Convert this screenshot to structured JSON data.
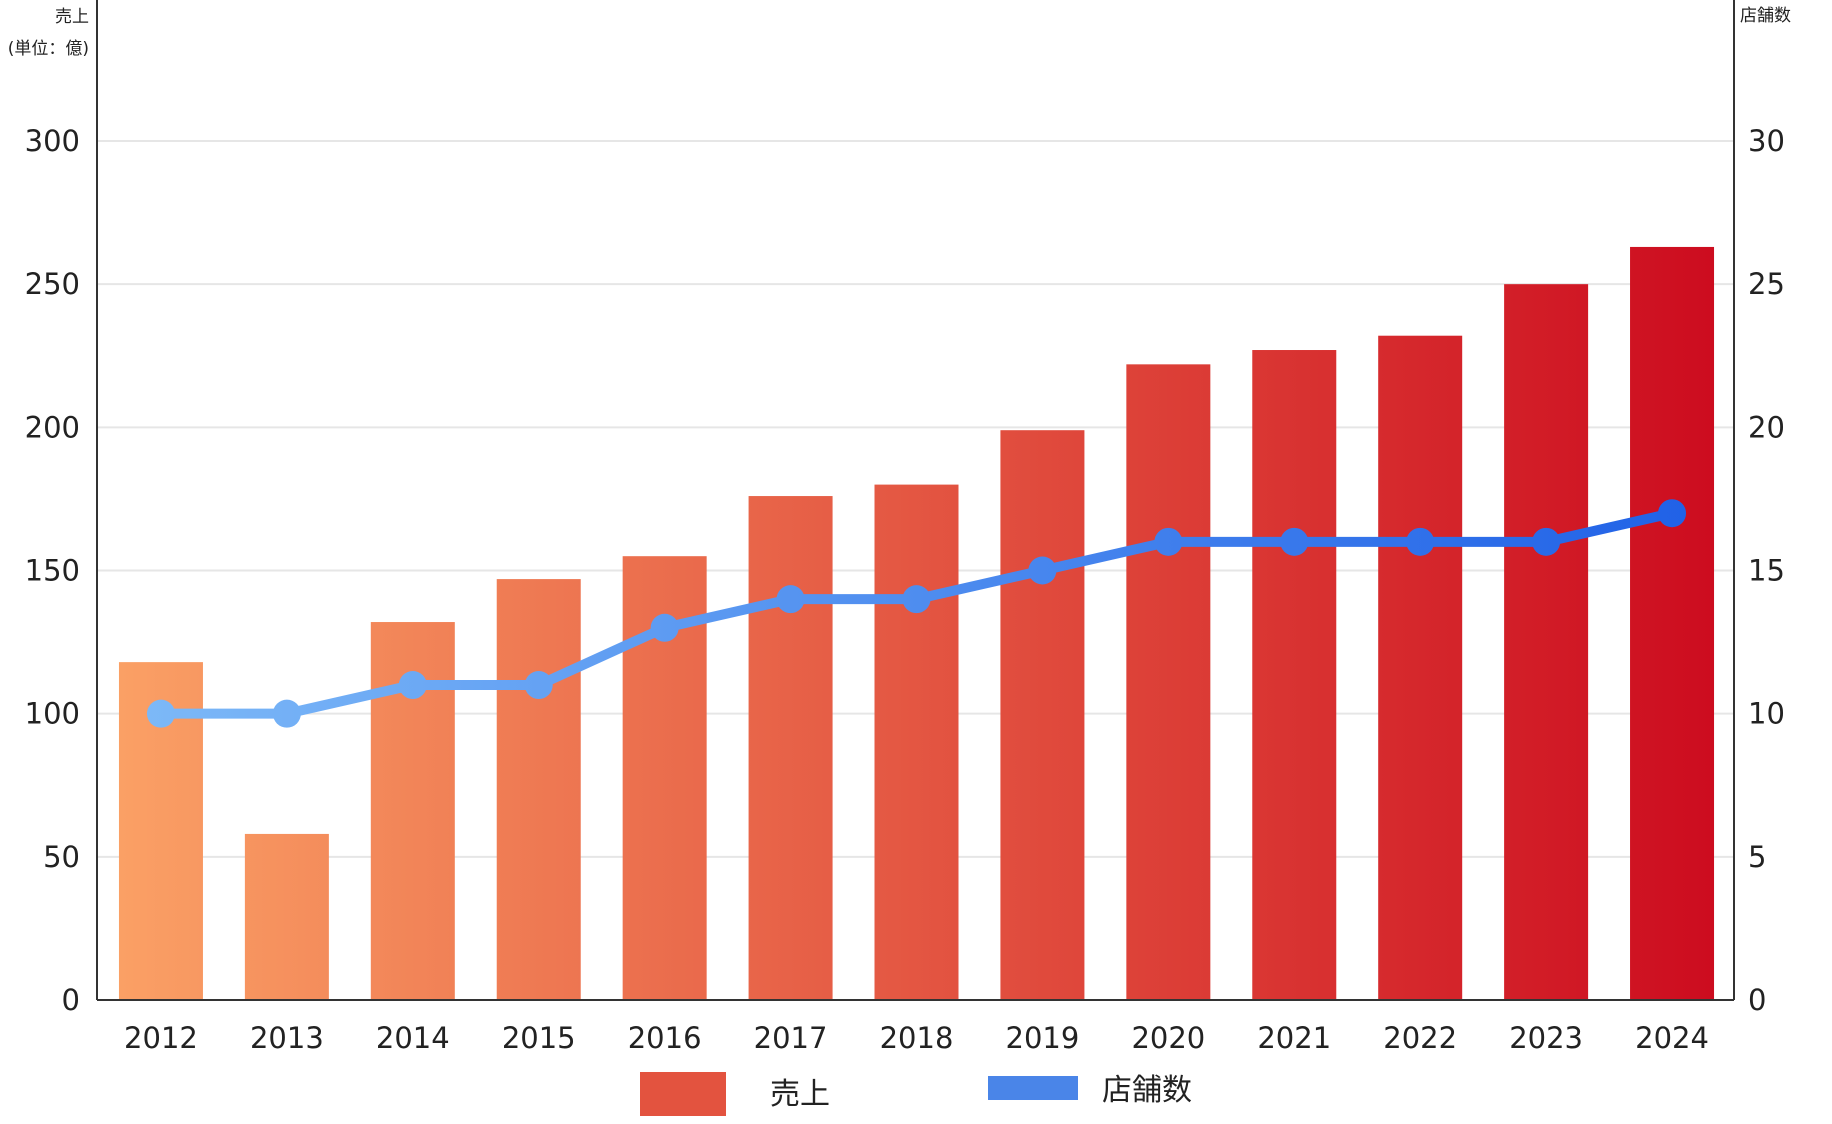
{
  "chart_data": {
    "type": "bar",
    "categories": [
      "2012",
      "2013",
      "2014",
      "2015",
      "2016",
      "2017",
      "2018",
      "2019",
      "2020",
      "2021",
      "2022",
      "2023",
      "2024"
    ],
    "series": [
      {
        "name": "売上",
        "type": "bar",
        "axis": "left",
        "values": [
          118,
          58,
          132,
          147,
          155,
          176,
          180,
          199,
          222,
          227,
          232,
          250,
          263
        ]
      },
      {
        "name": "店舗数",
        "type": "line",
        "axis": "right",
        "values": [
          10,
          10,
          11,
          11,
          13,
          14,
          14,
          15,
          16,
          16,
          16,
          16,
          17
        ]
      }
    ],
    "left_axis": {
      "label_line1": "売上",
      "label_line2": "(単位：億)",
      "ticks": [
        "0",
        "50",
        "100",
        "150",
        "200",
        "250",
        "300"
      ]
    },
    "right_axis": {
      "label": "店舗数",
      "ticks": [
        "0",
        "5",
        "10",
        "15",
        "20",
        "25",
        "30"
      ]
    },
    "grid": true,
    "legend_position": "bottom",
    "colors": {
      "bar_start": "#FBA266",
      "bar_end": "#CC0A1E",
      "line_start": "#7FBBF8",
      "line_end": "#1E5FE6",
      "legend_bar": "#E3533F",
      "legend_line": "#4A85E8",
      "grid": "#e6e6e6",
      "axis": "#333333"
    }
  }
}
